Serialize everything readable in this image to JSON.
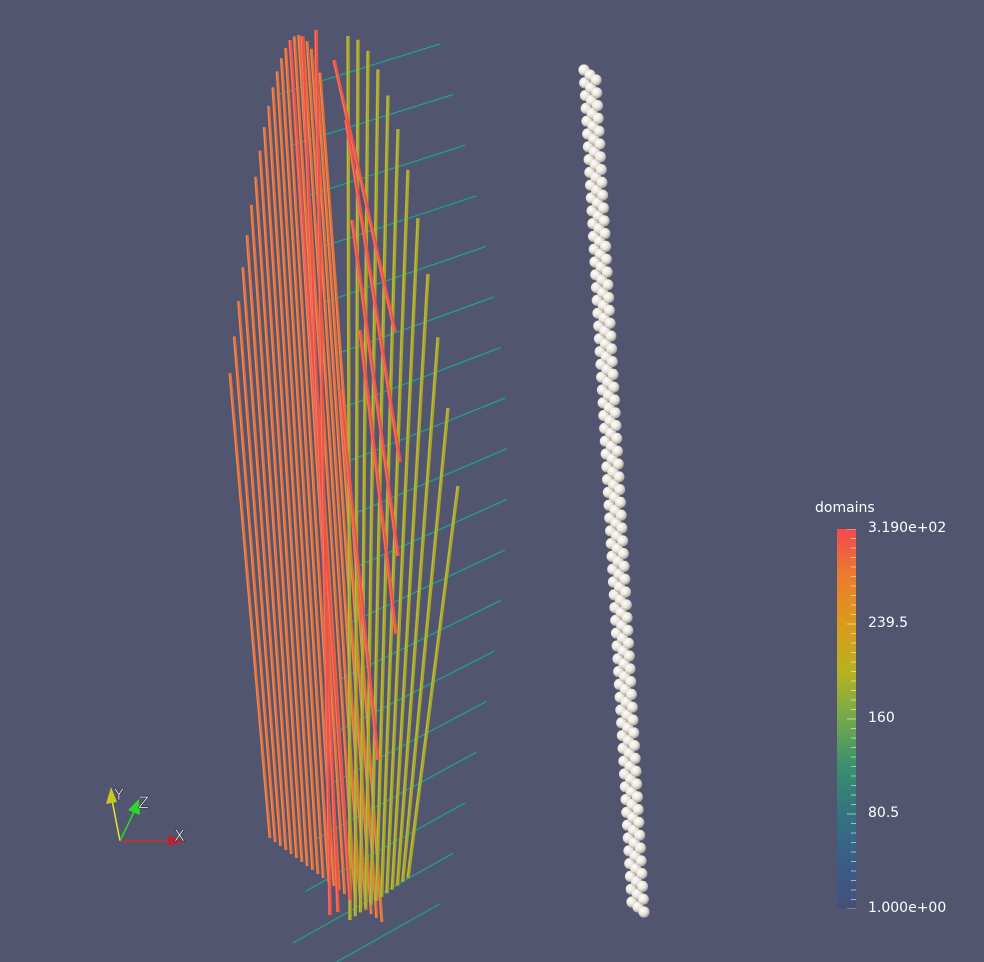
{
  "viewport": {
    "background": "#525570"
  },
  "colorbar": {
    "title": "domains",
    "labels": [
      "3.190e+02",
      "239.5",
      "160",
      "80.5",
      "1.000e+00"
    ],
    "stops": [
      "#f3494e",
      "#eb7c2f",
      "#dc9a1b",
      "#b6b221",
      "#72aa4b",
      "#3a8f6e",
      "#337380",
      "#395d87",
      "#46507c"
    ]
  },
  "axes": {
    "x_label": "X",
    "y_label": "Y",
    "z_label": "Z",
    "x_color": "#d42b2b",
    "y_color": "#e6e62a",
    "z_color": "#2fd52f"
  },
  "scene": {
    "rod_colors": {
      "orange": "#e66e34",
      "red": "#ec5344",
      "yellow": "#a9a722",
      "teal": "#2c6c70"
    },
    "bead_color": "#ebe6dc"
  }
}
